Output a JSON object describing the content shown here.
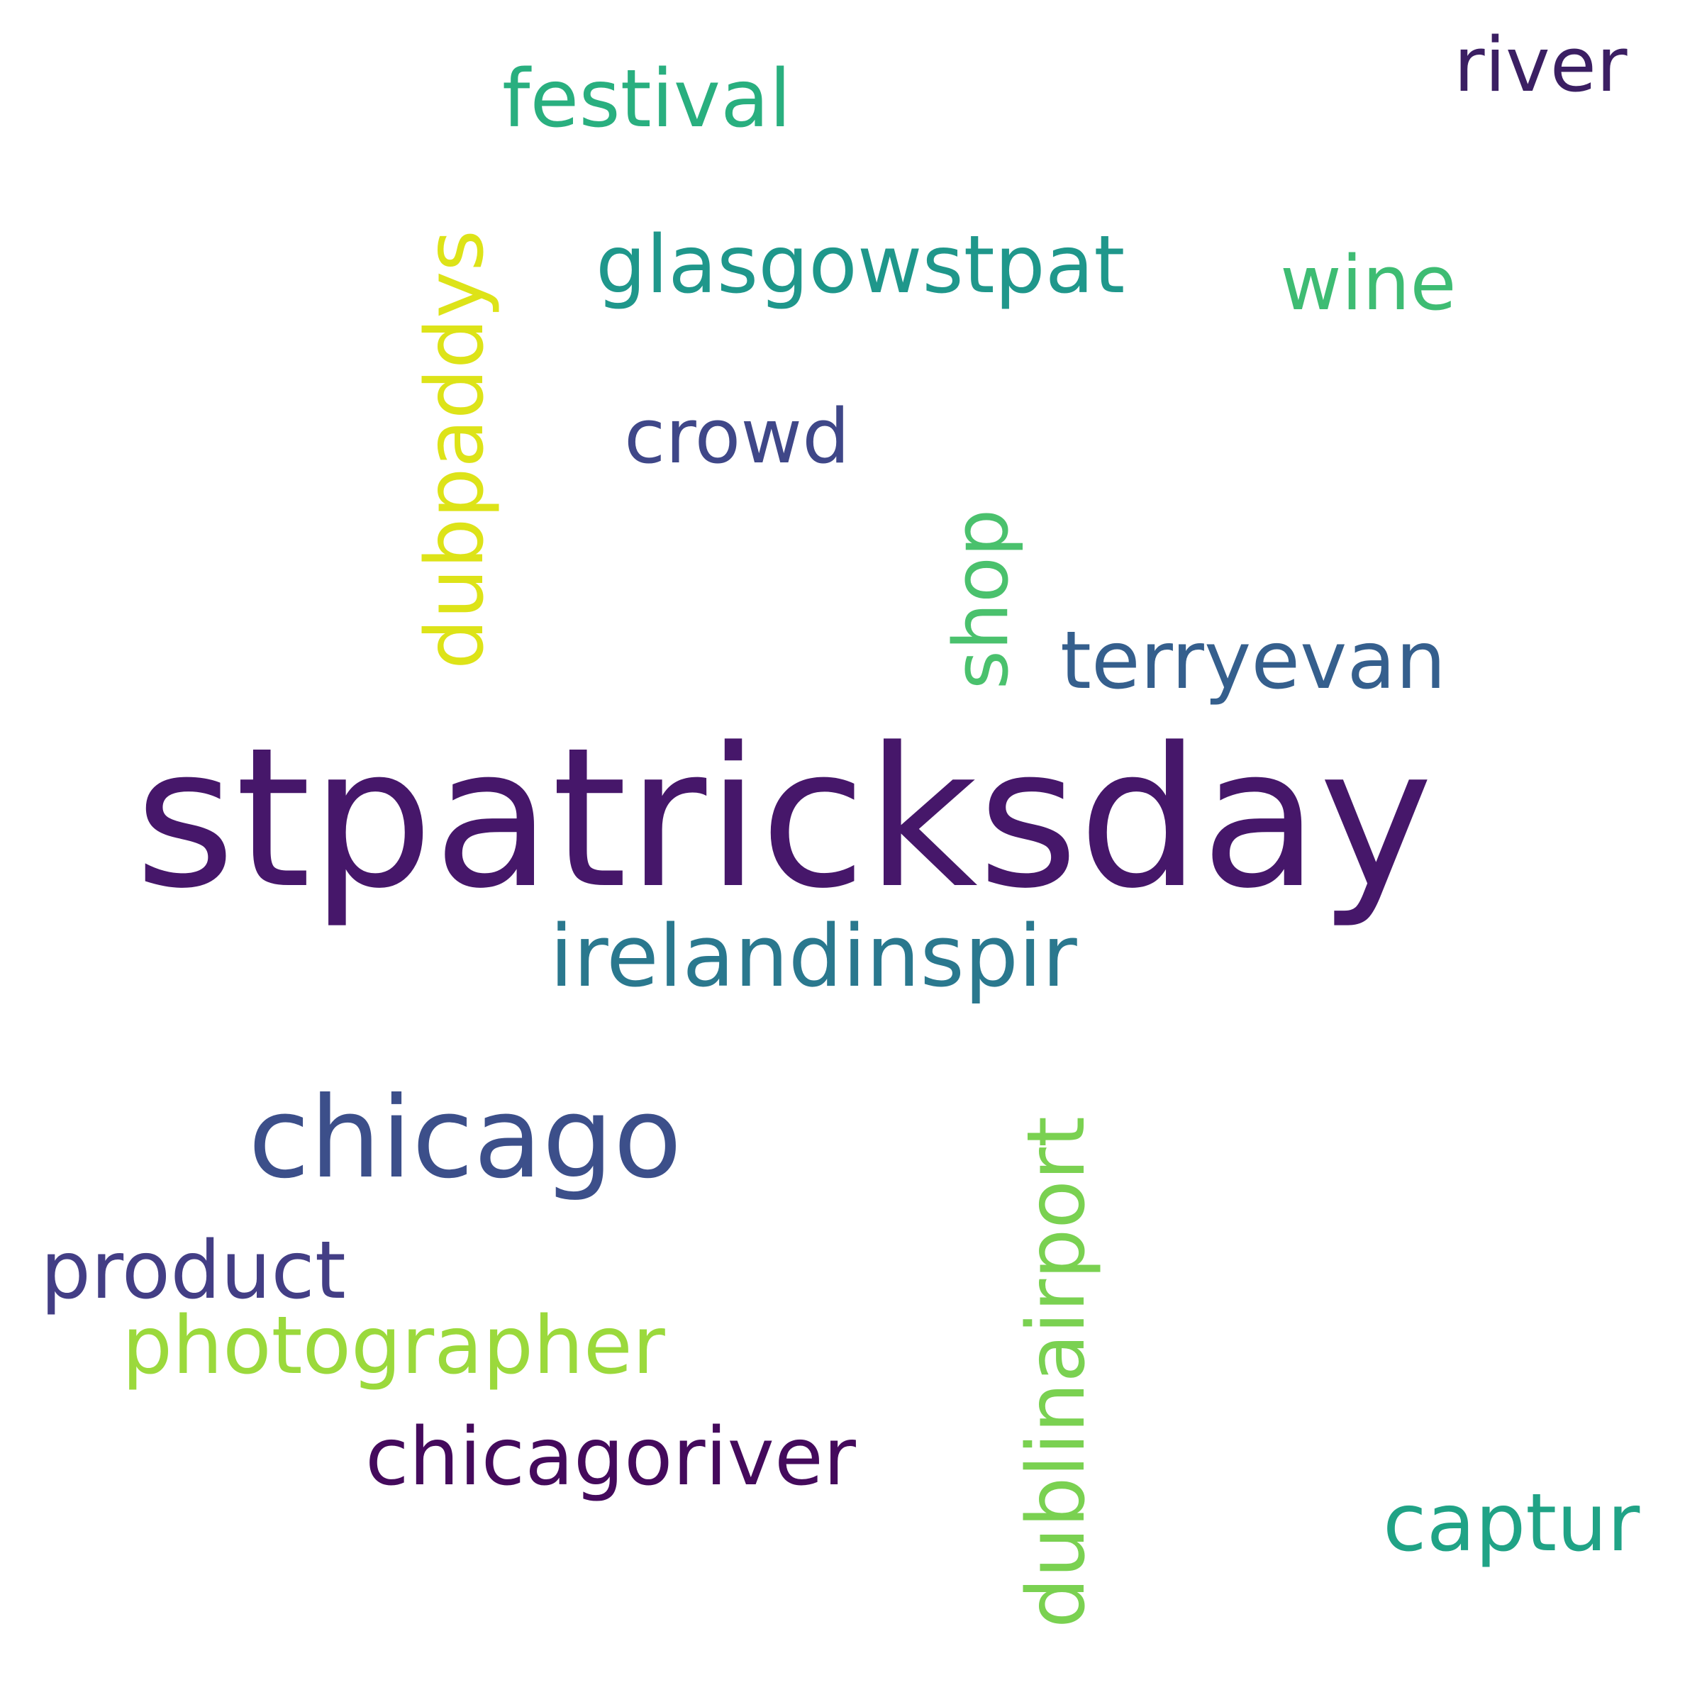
{
  "words": {
    "stpatricksday": {
      "text": "stpatricksday",
      "color": "#46176a"
    },
    "chicago": {
      "text": "chicago",
      "color": "#3c4f8a"
    },
    "irelandinspir": {
      "text": "irelandinspir",
      "color": "#2a788e"
    },
    "terryevan": {
      "text": "terryevan",
      "color": "#355f8d"
    },
    "glasgowstpat": {
      "text": "glasgowstpat",
      "color": "#1f978b"
    },
    "festival": {
      "text": "festival",
      "color": "#29af7f"
    },
    "river": {
      "text": "river",
      "color": "#3b1f63"
    },
    "wine": {
      "text": "wine",
      "color": "#3ebc73"
    },
    "crowd": {
      "text": "crowd",
      "color": "#3f4788"
    },
    "dubpaddys": {
      "text": "dubpaddys",
      "color": "#dde318"
    },
    "shop": {
      "text": "shop",
      "color": "#4ac16d"
    },
    "product": {
      "text": "product",
      "color": "#433e85"
    },
    "photographer": {
      "text": "photographer",
      "color": "#9bd93c"
    },
    "chicagoriver": {
      "text": "chicagoriver",
      "color": "#440a5c"
    },
    "dublinairport": {
      "text": "dublinairport",
      "color": "#7ad151"
    },
    "captur": {
      "text": "captur",
      "color": "#20a386"
    }
  }
}
